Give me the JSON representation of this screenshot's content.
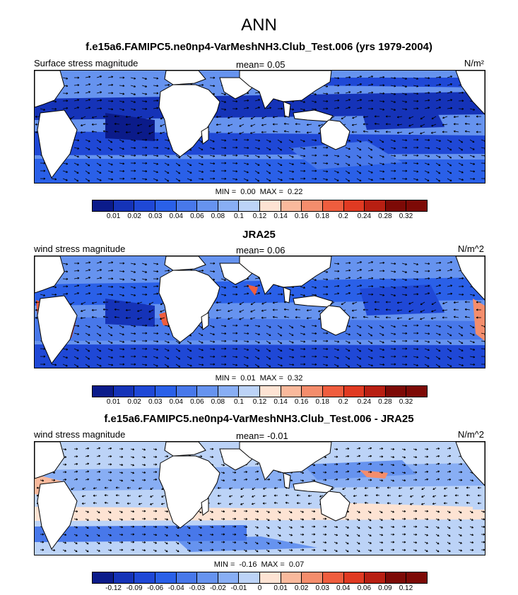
{
  "title": "ANN",
  "panels": [
    {
      "title": "f.e15a6.FAMIPC5.ne0np4-VarMeshNH3.Club_Test.006 (yrs 1979-2004)",
      "variable": "Surface stress magnitude",
      "mean_label": "mean=",
      "mean_value": "0.05",
      "units": "N/m²",
      "min_label": "MIN =",
      "min_value": "0.00",
      "max_label": "MAX =",
      "max_value": "0.22",
      "contour_levels": [
        "0.01",
        "0.02",
        "0.03",
        "0.04",
        "0.06",
        "0.08",
        "0.1",
        "0.12",
        "0.14",
        "0.16",
        "0.18",
        "0.2",
        "0.24",
        "0.28",
        "0.32"
      ]
    },
    {
      "title": "JRA25",
      "variable": "wind stress magnitude",
      "mean_label": "mean=",
      "mean_value": "0.06",
      "units": "N/m^2",
      "min_label": "MIN =",
      "min_value": "0.01",
      "max_label": "MAX =",
      "max_value": "0.32",
      "contour_levels": [
        "0.01",
        "0.02",
        "0.03",
        "0.04",
        "0.06",
        "0.08",
        "0.1",
        "0.12",
        "0.14",
        "0.16",
        "0.18",
        "0.2",
        "0.24",
        "0.28",
        "0.32"
      ]
    },
    {
      "title": "f.e15a6.FAMIPC5.ne0np4-VarMeshNH3.Club_Test.006 - JRA25",
      "variable": "wind stress magnitude",
      "mean_label": "mean=",
      "mean_value": "-0.01",
      "units": "N/m^2",
      "min_label": "MIN =",
      "min_value": "-0.16",
      "max_label": "MAX =",
      "max_value": "0.07",
      "contour_levels": [
        "-0.12",
        "-0.09",
        "-0.06",
        "-0.04",
        "-0.03",
        "-0.02",
        "-0.01",
        "0",
        "0.01",
        "0.02",
        "0.03",
        "0.04",
        "0.06",
        "0.09",
        "0.12"
      ]
    }
  ],
  "colors": {
    "palette": [
      "#0b1b8a",
      "#1533b8",
      "#1f48d6",
      "#2a60e8",
      "#4878ea",
      "#6693ef",
      "#88aef4",
      "#bcd3f7",
      "#fde3d3",
      "#f9b99c",
      "#f48d6c",
      "#ef5d3e",
      "#e03a22",
      "#b81f12",
      "#7d0a06"
    ],
    "land": "#ffffff",
    "coast": "#000000",
    "vector": "#000000"
  }
}
